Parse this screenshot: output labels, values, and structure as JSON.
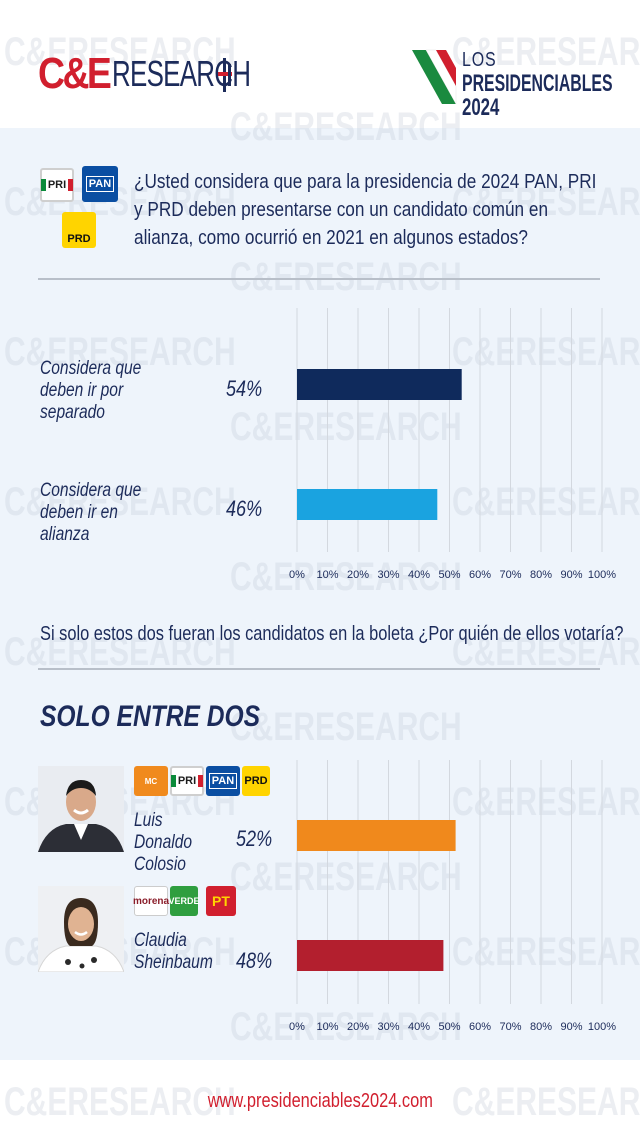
{
  "header": {
    "brand_ce": "C&E",
    "brand_research": "RESEARCH",
    "title_line1": "LOS",
    "title_line2": "PRESIDENCIABLES",
    "title_line3": "2024"
  },
  "watermark": "C&ERESEARCH",
  "q1": {
    "text": "¿Usted considera que para la presidencia de 2024 PAN, PRI y PRD deben presentarse con un candidato común en alianza, como ocurrió en 2021 en algunos estados?",
    "badges": [
      "PRI",
      "PAN",
      "PRD"
    ]
  },
  "q2": {
    "text": "Si solo estos dos fueran los candidatos en la boleta ¿Por quién de ellos votaría?"
  },
  "section_title": "SOLO ENTRE DOS",
  "candidates": [
    {
      "name": "Luis Donaldo Colosio",
      "badges": [
        "MC",
        "PRI",
        "PAN",
        "PRD"
      ]
    },
    {
      "name": "Claudia Sheinbaum",
      "badges": [
        "morena",
        "VERDE",
        "PT"
      ]
    }
  ],
  "chart_data": [
    {
      "type": "bar",
      "orientation": "horizontal",
      "categories": [
        "Considera que deben ir por separado",
        "Considera que deben ir en alianza"
      ],
      "values": [
        54,
        46
      ],
      "value_labels": [
        "54%",
        "46%"
      ],
      "colors": [
        "#0f2a5c",
        "#1aa3e0"
      ],
      "xlim": [
        0,
        100
      ],
      "xticks": [
        "0%",
        "10%",
        "20%",
        "30%",
        "40%",
        "50%",
        "60%",
        "70%",
        "80%",
        "90%",
        "100%"
      ],
      "grid": true
    },
    {
      "type": "bar",
      "orientation": "horizontal",
      "categories": [
        "Luis Donaldo Colosio",
        "Claudia Sheinbaum"
      ],
      "values": [
        52,
        48
      ],
      "value_labels": [
        "52%",
        "48%"
      ],
      "colors": [
        "#f0891c",
        "#b31f2e"
      ],
      "xlim": [
        0,
        100
      ],
      "xticks": [
        "0%",
        "10%",
        "20%",
        "30%",
        "40%",
        "50%",
        "60%",
        "70%",
        "80%",
        "90%",
        "100%"
      ],
      "grid": true
    }
  ],
  "footer": {
    "url": "www.presidenciables2024.com"
  }
}
